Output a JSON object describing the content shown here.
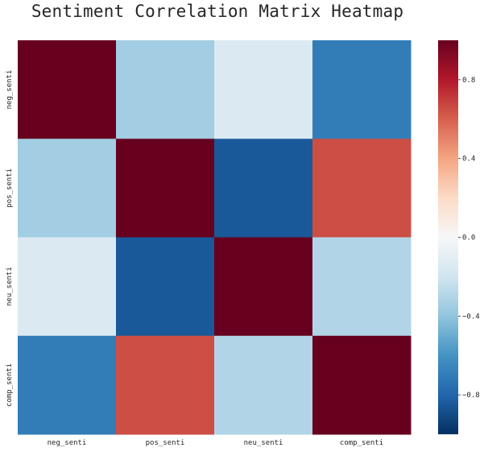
{
  "chart_data": {
    "type": "heatmap",
    "title": "Sentiment Correlation Matrix Heatmap",
    "row_labels": [
      "neg_senti",
      "pos_senti",
      "neu_senti",
      "comp_senti"
    ],
    "col_labels": [
      "neg_senti",
      "pos_senti",
      "neu_senti",
      "comp_senti"
    ],
    "values": [
      [
        1.0,
        -0.35,
        -0.15,
        -0.7
      ],
      [
        -0.35,
        1.0,
        -0.85,
        0.65
      ],
      [
        -0.15,
        -0.85,
        1.0,
        -0.3
      ],
      [
        -0.7,
        0.65,
        -0.3,
        1.0
      ]
    ],
    "colormap": "RdBu_r",
    "vmin": -1.0,
    "vmax": 1.0,
    "colorbar_ticks": [
      0.8,
      0.4,
      0.0,
      -0.4,
      -0.8
    ],
    "colorbar_tick_labels": [
      "0.8",
      "0.4",
      "0.0",
      "−0.4",
      "−0.8"
    ]
  }
}
